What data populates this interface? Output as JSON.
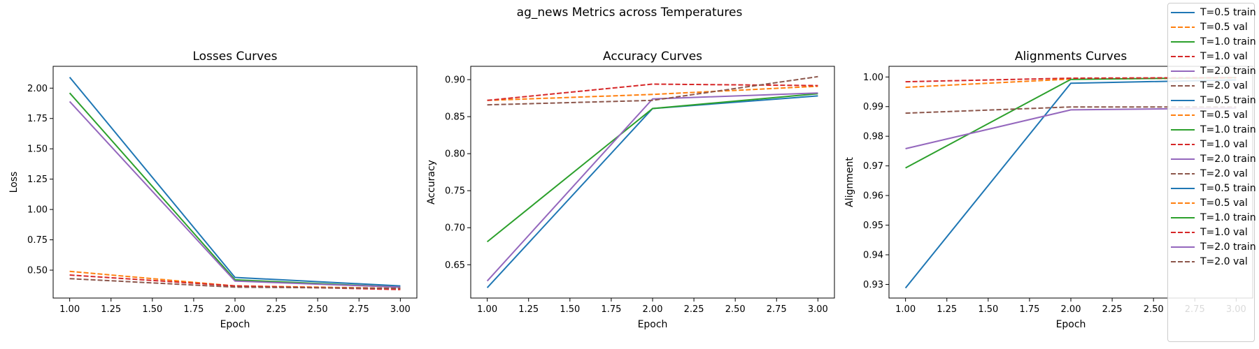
{
  "figure": {
    "title": "ag_news Metrics across Temperatures"
  },
  "colors": {
    "c05train": "#1f77b4",
    "c05val": "#ff7f0e",
    "c10train": "#2ca02c",
    "c10val": "#d62728",
    "c20train": "#9467bd",
    "c20val": "#8c564b"
  },
  "chart_data": [
    {
      "type": "line",
      "title": "Losses Curves",
      "xlabel": "Epoch",
      "ylabel": "Loss",
      "x": [
        1,
        2,
        3
      ],
      "xlim": [
        0.9,
        3.1
      ],
      "ylim": [
        0.27,
        2.18
      ],
      "xticks": [
        "1.00",
        "1.25",
        "1.50",
        "1.75",
        "2.00",
        "2.25",
        "2.50",
        "2.75",
        "3.00"
      ],
      "yticks": [
        "0.50",
        "0.75",
        "1.00",
        "1.25",
        "1.50",
        "1.75",
        "2.00"
      ],
      "series": [
        {
          "name": "T=0.5 train",
          "values": [
            2.09,
            0.44,
            0.37
          ],
          "color": "#1f77b4",
          "style": "solid"
        },
        {
          "name": "T=0.5 val",
          "values": [
            0.49,
            0.37,
            0.35
          ],
          "color": "#ff7f0e",
          "style": "dashed"
        },
        {
          "name": "T=1.0 train",
          "values": [
            1.96,
            0.42,
            0.36
          ],
          "color": "#2ca02c",
          "style": "solid"
        },
        {
          "name": "T=1.0 val",
          "values": [
            0.46,
            0.37,
            0.34
          ],
          "color": "#d62728",
          "style": "dashed"
        },
        {
          "name": "T=2.0 train",
          "values": [
            1.89,
            0.41,
            0.36
          ],
          "color": "#9467bd",
          "style": "solid"
        },
        {
          "name": "T=2.0 val",
          "values": [
            0.43,
            0.36,
            0.35
          ],
          "color": "#8c564b",
          "style": "dashed"
        }
      ]
    },
    {
      "type": "line",
      "title": "Accuracy Curves",
      "xlabel": "Epoch",
      "ylabel": "Accuracy",
      "x": [
        1,
        2,
        3
      ],
      "xlim": [
        0.9,
        3.1
      ],
      "ylim": [
        0.605,
        0.918
      ],
      "xticks": [
        "1.00",
        "1.25",
        "1.50",
        "1.75",
        "2.00",
        "2.25",
        "2.50",
        "2.75",
        "3.00"
      ],
      "yticks": [
        "0.65",
        "0.70",
        "0.75",
        "0.80",
        "0.85",
        "0.90"
      ],
      "series": [
        {
          "name": "T=0.5 train",
          "values": [
            0.619,
            0.861,
            0.878
          ],
          "color": "#1f77b4",
          "style": "solid"
        },
        {
          "name": "T=0.5 val",
          "values": [
            0.872,
            0.88,
            0.891
          ],
          "color": "#ff7f0e",
          "style": "dashed"
        },
        {
          "name": "T=1.0 train",
          "values": [
            0.681,
            0.861,
            0.881
          ],
          "color": "#2ca02c",
          "style": "solid"
        },
        {
          "name": "T=1.0 val",
          "values": [
            0.872,
            0.894,
            0.892
          ],
          "color": "#d62728",
          "style": "dashed"
        },
        {
          "name": "T=2.0 train",
          "values": [
            0.628,
            0.874,
            0.882
          ],
          "color": "#9467bd",
          "style": "solid"
        },
        {
          "name": "T=2.0 val",
          "values": [
            0.866,
            0.872,
            0.904
          ],
          "color": "#8c564b",
          "style": "dashed"
        }
      ]
    },
    {
      "type": "line",
      "title": "Alignments Curves",
      "xlabel": "Epoch",
      "ylabel": "Alignment",
      "x": [
        1,
        2,
        3
      ],
      "xlim": [
        0.9,
        3.1
      ],
      "ylim": [
        0.9254,
        1.0036
      ],
      "xticks": [
        "1.00",
        "1.25",
        "1.50",
        "1.75",
        "2.00",
        "2.25",
        "2.50",
        "2.75",
        "3.00"
      ],
      "yticks": [
        "0.93",
        "0.94",
        "0.95",
        "0.96",
        "0.97",
        "0.98",
        "0.99",
        "1.00"
      ],
      "series": [
        {
          "name": "T=0.5 train",
          "values": [
            0.9288,
            0.9979,
            0.999
          ],
          "color": "#1f77b4",
          "style": "solid"
        },
        {
          "name": "T=0.5 val",
          "values": [
            0.9965,
            0.9993,
            0.9997
          ],
          "color": "#ff7f0e",
          "style": "dashed"
        },
        {
          "name": "T=1.0 train",
          "values": [
            0.9693,
            0.9992,
            0.9998
          ],
          "color": "#2ca02c",
          "style": "solid"
        },
        {
          "name": "T=1.0 val",
          "values": [
            0.9984,
            0.9996,
            0.9998
          ],
          "color": "#d62728",
          "style": "dashed"
        },
        {
          "name": "T=2.0 train",
          "values": [
            0.9758,
            0.9889,
            0.9895
          ],
          "color": "#9467bd",
          "style": "solid"
        },
        {
          "name": "T=2.0 val",
          "values": [
            0.9878,
            0.9899,
            0.9899
          ],
          "color": "#8c564b",
          "style": "dashed"
        }
      ]
    }
  ],
  "legend": {
    "placement": "top-right",
    "items": [
      {
        "label": "T=0.5 train",
        "color": "#1f77b4",
        "style": "solid"
      },
      {
        "label": "T=0.5 val",
        "color": "#ff7f0e",
        "style": "dashed"
      },
      {
        "label": "T=1.0 train",
        "color": "#2ca02c",
        "style": "solid"
      },
      {
        "label": "T=1.0 val",
        "color": "#d62728",
        "style": "dashed"
      },
      {
        "label": "T=2.0 train",
        "color": "#9467bd",
        "style": "solid"
      },
      {
        "label": "T=2.0 val",
        "color": "#8c564b",
        "style": "dashed"
      },
      {
        "label": "T=0.5 train",
        "color": "#1f77b4",
        "style": "solid"
      },
      {
        "label": "T=0.5 val",
        "color": "#ff7f0e",
        "style": "dashed"
      },
      {
        "label": "T=1.0 train",
        "color": "#2ca02c",
        "style": "solid"
      },
      {
        "label": "T=1.0 val",
        "color": "#d62728",
        "style": "dashed"
      },
      {
        "label": "T=2.0 train",
        "color": "#9467bd",
        "style": "solid"
      },
      {
        "label": "T=2.0 val",
        "color": "#8c564b",
        "style": "dashed"
      },
      {
        "label": "T=0.5 train",
        "color": "#1f77b4",
        "style": "solid"
      },
      {
        "label": "T=0.5 val",
        "color": "#ff7f0e",
        "style": "dashed"
      },
      {
        "label": "T=1.0 train",
        "color": "#2ca02c",
        "style": "solid"
      },
      {
        "label": "T=1.0 val",
        "color": "#d62728",
        "style": "dashed"
      },
      {
        "label": "T=2.0 train",
        "color": "#9467bd",
        "style": "solid"
      },
      {
        "label": "T=2.0 val",
        "color": "#8c564b",
        "style": "dashed"
      }
    ]
  }
}
